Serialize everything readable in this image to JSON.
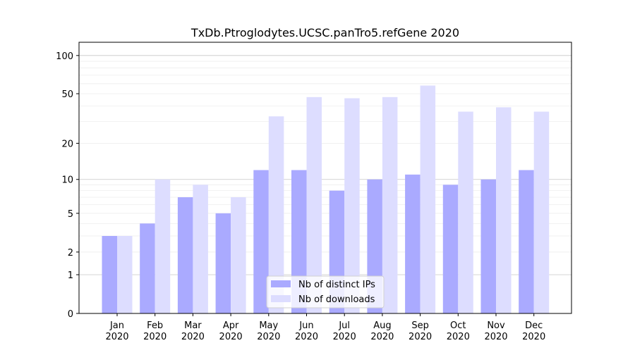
{
  "chart_data": {
    "type": "bar",
    "title": "TxDb.Ptroglodytes.UCSC.panTro5.refGene 2020",
    "xlabel": "",
    "ylabel": "",
    "yscale": "log10(1+y)",
    "ylim": [
      0,
      120
    ],
    "yticks": [
      0,
      1,
      2,
      5,
      10,
      20,
      50,
      100
    ],
    "grid": true,
    "legend_position": "bottom-center",
    "categories": [
      "Jan\n2020",
      "Feb\n2020",
      "Mar\n2020",
      "Apr\n2020",
      "May\n2020",
      "Jun\n2020",
      "Jul\n2020",
      "Aug\n2020",
      "Sep\n2020",
      "Oct\n2020",
      "Nov\n2020",
      "Dec\n2020"
    ],
    "series": [
      {
        "name": "Nb of distinct IPs",
        "color": "#aaaaff",
        "values": [
          3,
          4,
          7,
          5,
          12,
          12,
          8,
          10,
          11,
          9,
          10,
          12
        ]
      },
      {
        "name": "Nb of downloads",
        "color": "#ddddff",
        "values": [
          3,
          10,
          9,
          7,
          33,
          47,
          46,
          47,
          58,
          36,
          39,
          36
        ]
      }
    ]
  }
}
